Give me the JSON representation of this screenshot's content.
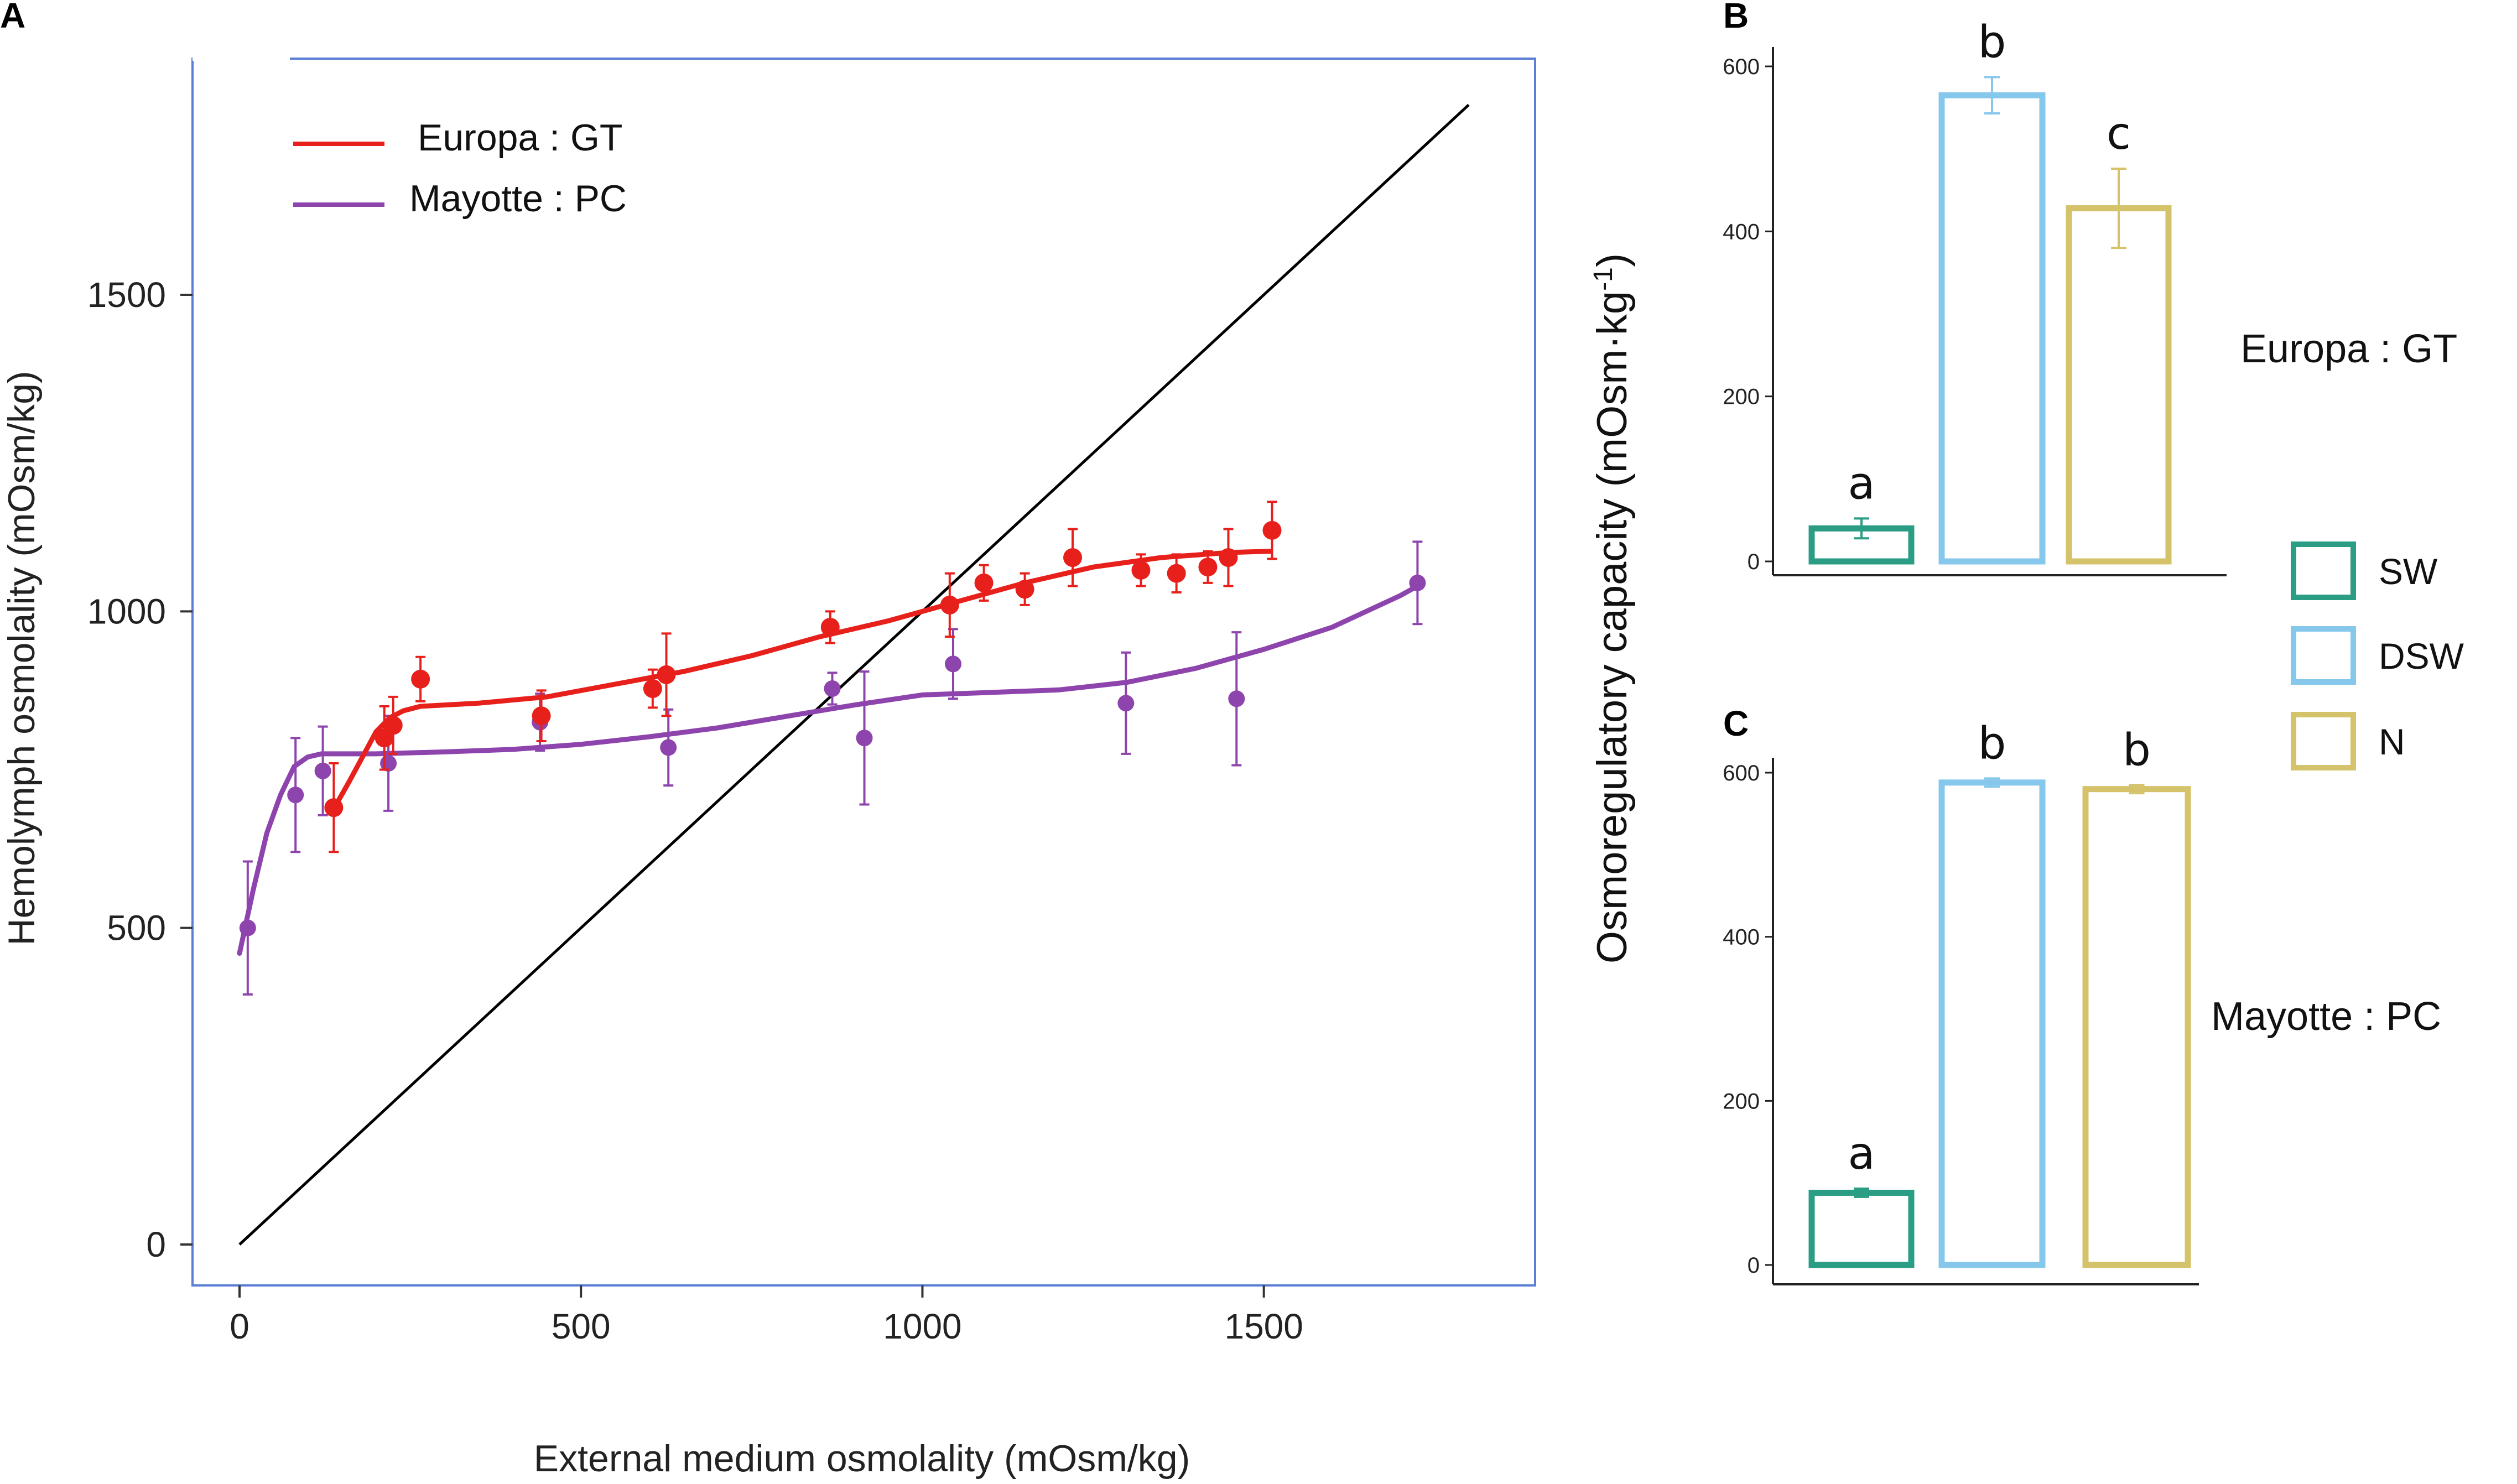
{
  "colors": {
    "europa": "#e8201c",
    "mayotte": "#8e44ad",
    "identity": "#000000",
    "frame_a": "#5b7fd6",
    "SW": "#2a9d84",
    "DSW": "#86c8ec",
    "N": "#d4c36a"
  },
  "chart_data": [
    {
      "panel": "A",
      "type": "scatter",
      "xlabel": "External medium osmolality (mOsm/kg)",
      "ylabel": "Hemolymph osmolality (mOsm/kg)",
      "xlim": [
        -70,
        1880
      ],
      "ylim": [
        -80,
        1880
      ],
      "xticks": [
        0,
        500,
        1000,
        1500
      ],
      "yticks": [
        0,
        500,
        1000,
        1500
      ],
      "grid": false,
      "legend_position": "top-left",
      "identity_line": {
        "x": [
          0,
          1800
        ],
        "y": [
          0,
          1800
        ]
      },
      "series": [
        {
          "name": "Europa : GT",
          "color_key": "europa",
          "points": [
            {
              "x": 138,
              "y": 690,
              "err": 70
            },
            {
              "x": 212,
              "y": 800,
              "err": 50
            },
            {
              "x": 225,
              "y": 820,
              "err": 45
            },
            {
              "x": 265,
              "y": 893,
              "err": 35
            },
            {
              "x": 442,
              "y": 835,
              "err": 40
            },
            {
              "x": 605,
              "y": 878,
              "err": 30
            },
            {
              "x": 625,
              "y": 900,
              "err": 65
            },
            {
              "x": 865,
              "y": 975,
              "err": 25
            },
            {
              "x": 1040,
              "y": 1010,
              "err": 50
            },
            {
              "x": 1090,
              "y": 1045,
              "err": 28
            },
            {
              "x": 1150,
              "y": 1035,
              "err": 25
            },
            {
              "x": 1220,
              "y": 1085,
              "err": 45
            },
            {
              "x": 1320,
              "y": 1065,
              "err": 25
            },
            {
              "x": 1372,
              "y": 1060,
              "err": 30
            },
            {
              "x": 1418,
              "y": 1070,
              "err": 25
            },
            {
              "x": 1448,
              "y": 1085,
              "err": 45
            },
            {
              "x": 1512,
              "y": 1128,
              "err": 45
            }
          ],
          "fit": {
            "x": [
              140,
              160,
              180,
              200,
              220,
              240,
              265,
              350,
              450,
              550,
              650,
              750,
              850,
              950,
              1050,
              1150,
              1250,
              1350,
              1450,
              1510
            ],
            "y": [
              692,
              730,
              770,
              810,
              832,
              843,
              850,
              855,
              865,
              885,
              905,
              930,
              960,
              985,
              1015,
              1045,
              1070,
              1085,
              1093,
              1095
            ]
          }
        },
        {
          "name": "Mayotte : PC",
          "color_key": "mayotte",
          "points": [
            {
              "x": 12,
              "y": 500,
              "err": 105
            },
            {
              "x": 82,
              "y": 710,
              "err": 90
            },
            {
              "x": 122,
              "y": 748,
              "err": 70
            },
            {
              "x": 218,
              "y": 760,
              "err": 75
            },
            {
              "x": 440,
              "y": 825,
              "err": 45
            },
            {
              "x": 628,
              "y": 785,
              "err": 60
            },
            {
              "x": 868,
              "y": 878,
              "err": 25
            },
            {
              "x": 915,
              "y": 800,
              "err": 105
            },
            {
              "x": 1045,
              "y": 917,
              "err": 55
            },
            {
              "x": 1298,
              "y": 855,
              "err": 80
            },
            {
              "x": 1460,
              "y": 862,
              "err": 105
            },
            {
              "x": 1725,
              "y": 1045,
              "err": 65
            }
          ],
          "fit": {
            "x": [
              0,
              20,
              40,
              60,
              80,
              100,
              120,
              200,
              300,
              400,
              500,
              600,
              700,
              800,
              900,
              1000,
              1100,
              1200,
              1300,
              1400,
              1500,
              1600,
              1700,
              1725
            ],
            "y": [
              460,
              560,
              650,
              710,
              755,
              770,
              775,
              775,
              778,
              782,
              790,
              802,
              816,
              834,
              852,
              868,
              872,
              876,
              888,
              910,
              940,
              975,
              1025,
              1040
            ]
          }
        }
      ]
    },
    {
      "panel": "B",
      "type": "bar",
      "side_label": "Europa : GT",
      "categories": [
        "SW",
        "DSW",
        "N"
      ],
      "values": [
        40,
        565,
        428
      ],
      "errors": [
        12,
        22,
        48
      ],
      "significance": [
        "a",
        "b",
        "c"
      ],
      "ylim": [
        0,
        600
      ],
      "yticks": [
        0,
        200,
        400,
        600
      ],
      "grid": false
    },
    {
      "panel": "C",
      "type": "bar",
      "side_label": "Mayotte : PC",
      "categories": [
        "SW",
        "DSW",
        "N"
      ],
      "values": [
        88,
        588,
        580
      ],
      "errors": [
        5,
        5,
        5
      ],
      "significance": [
        "a",
        "b",
        "b"
      ],
      "ylim": [
        0,
        600
      ],
      "yticks": [
        0,
        200,
        400,
        600
      ],
      "grid": false
    }
  ],
  "shared": {
    "ylabel_bc": "Osmoregulatory capacity (mOsm·kg",
    "ylabel_bc_sup": "-1",
    "ylabel_bc_close": ")",
    "legend_title": "",
    "legend_items": [
      "SW",
      "DSW",
      "N"
    ]
  }
}
